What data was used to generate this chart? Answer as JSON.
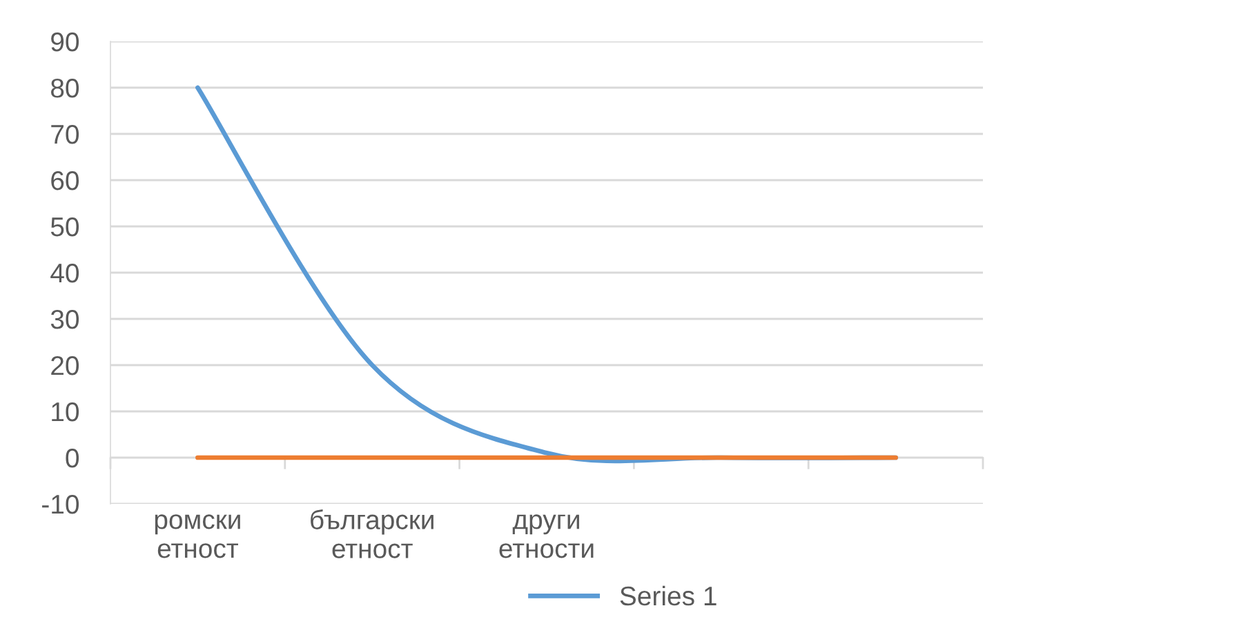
{
  "chart_data": {
    "type": "line",
    "categories": [
      "ромски етност",
      "български етност",
      "други етности",
      null,
      null
    ],
    "series": [
      {
        "name": "Series 1",
        "color": "#5b9bd5",
        "values": [
          80,
          20,
          1,
          0,
          0
        ]
      },
      {
        "color": "#ed7d31",
        "values": [
          0,
          0,
          0,
          0,
          0
        ]
      }
    ],
    "ylim": [
      -10,
      90
    ],
    "yticks": [
      -10,
      0,
      10,
      20,
      30,
      40,
      50,
      60,
      70,
      80,
      90
    ],
    "grid": "y",
    "legend": "bottom"
  }
}
